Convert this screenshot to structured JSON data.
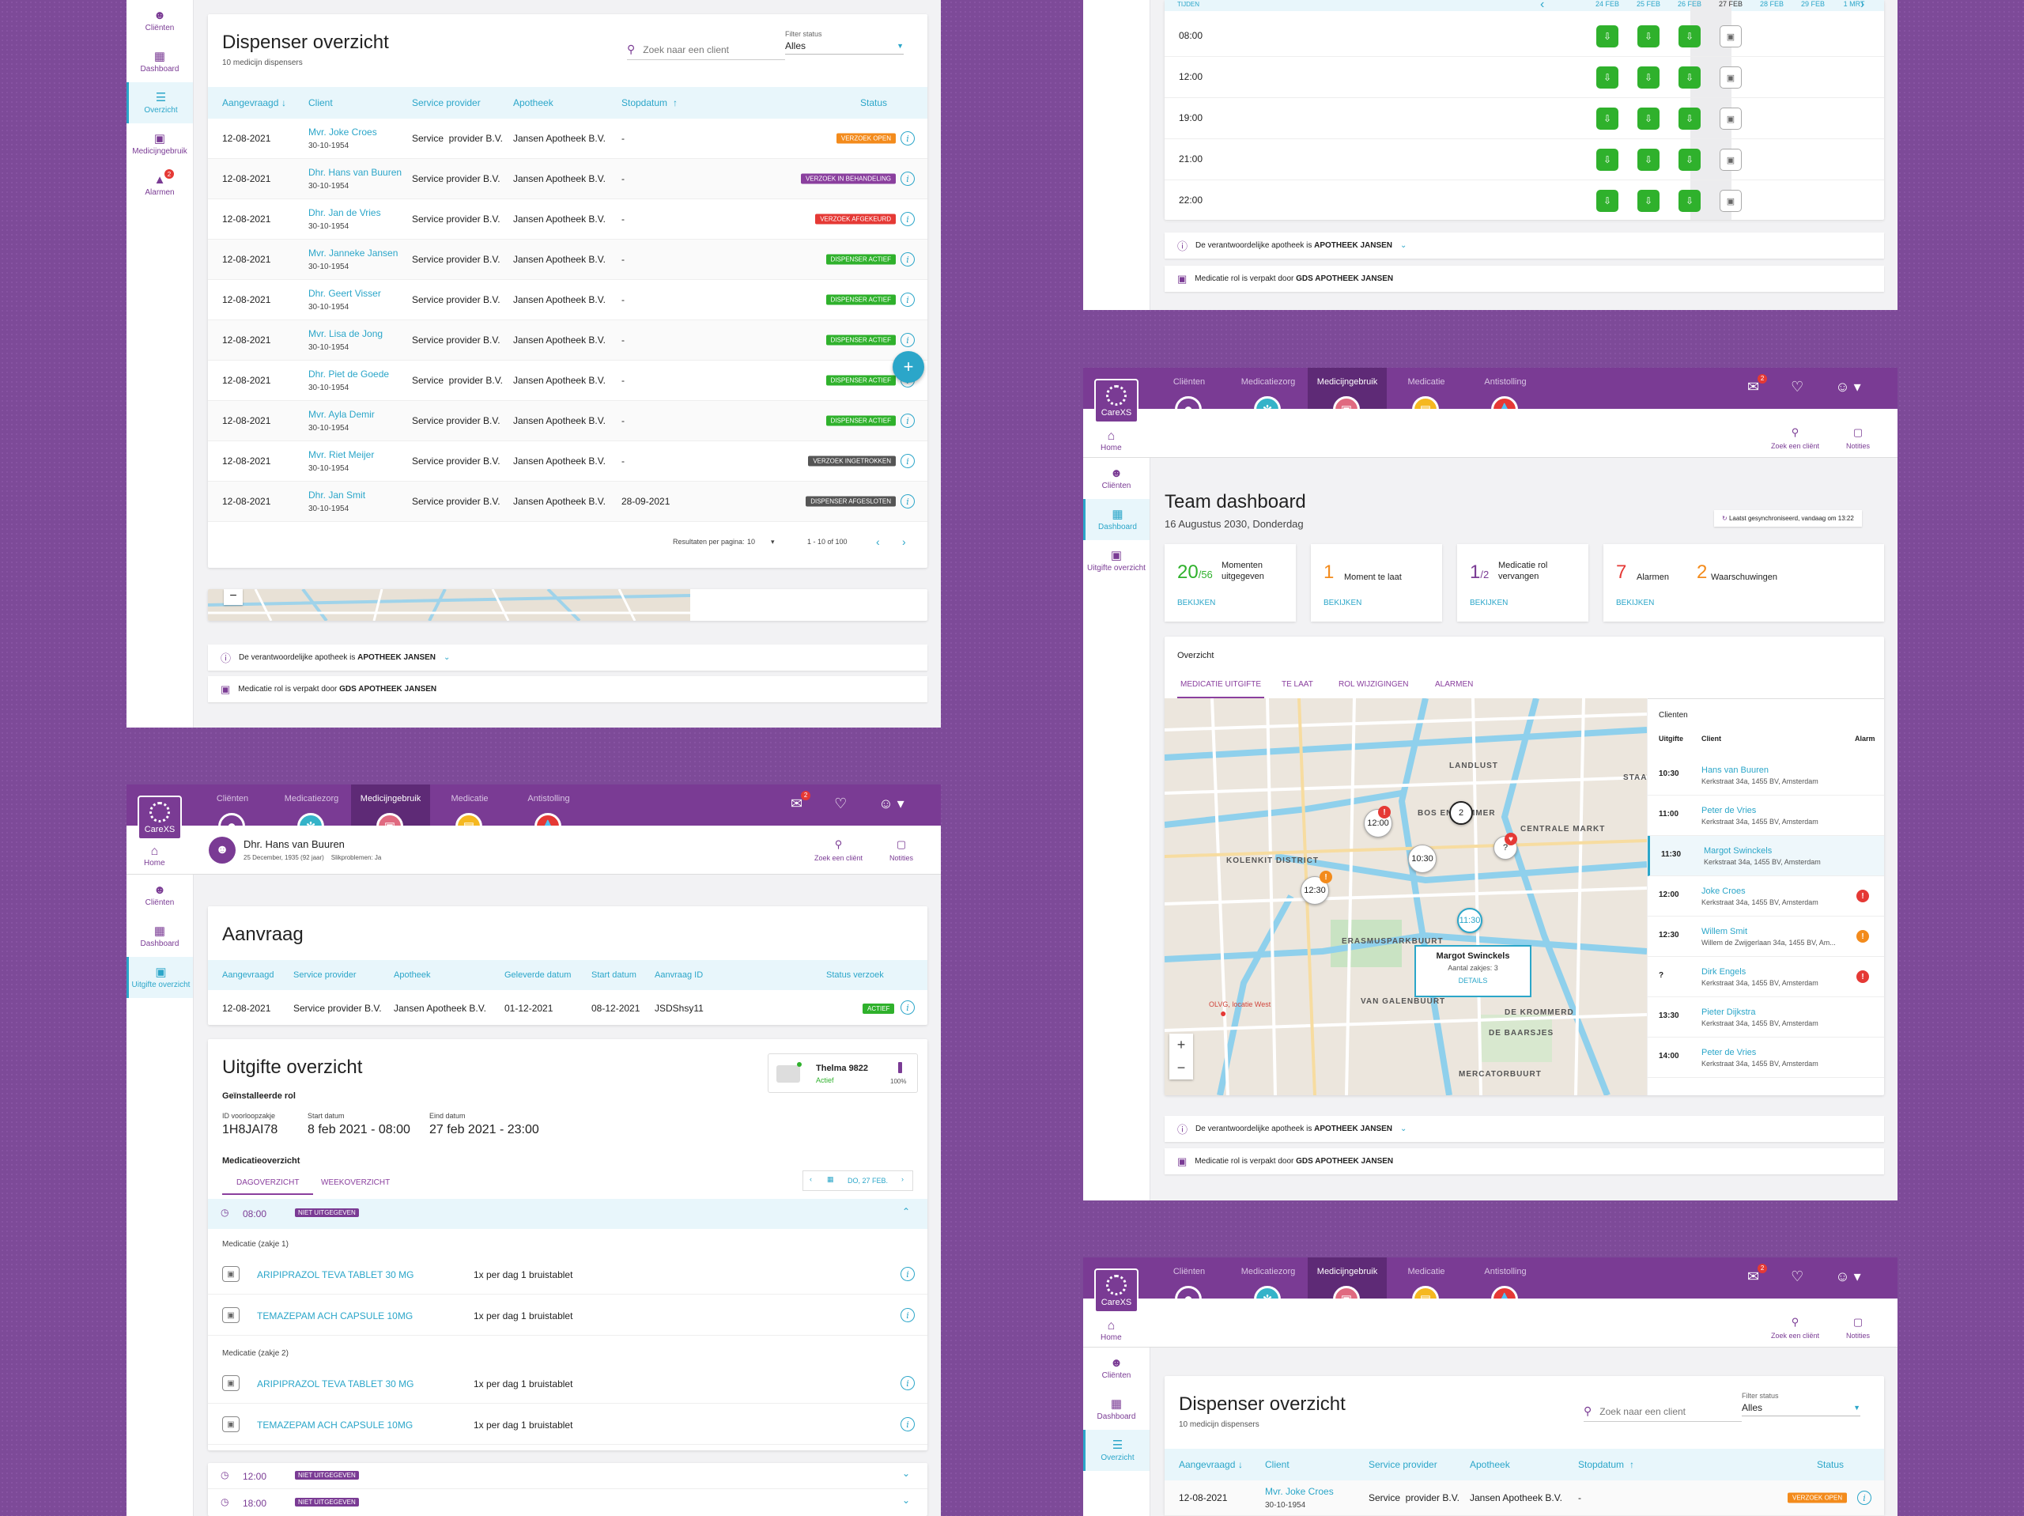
{
  "brand": {
    "primary": "#7a3b94",
    "accent": "#2ba6c9",
    "logo_text": "CareXS"
  },
  "sidebar": {
    "items": [
      {
        "label": "Cliënten",
        "icon": "person-icon"
      },
      {
        "label": "Dashboard",
        "icon": "grid-icon"
      },
      {
        "label": "Overzicht",
        "icon": "list-icon"
      },
      {
        "label": "Medicijngebruik",
        "icon": "dispenser-icon"
      },
      {
        "label": "Alarmen",
        "icon": "warning-icon",
        "badge": "2"
      }
    ],
    "items3": [
      {
        "label": "Cliënten"
      },
      {
        "label": "Dashboard"
      },
      {
        "label": "Uitgifte overzicht"
      }
    ],
    "items4": [
      {
        "label": "Cliënten"
      },
      {
        "label": "Dashboard"
      },
      {
        "label": "Uitgifte overzicht"
      }
    ],
    "items5": [
      {
        "label": "Cliënten"
      },
      {
        "label": "Dashboard"
      },
      {
        "label": "Overzicht"
      }
    ]
  },
  "nav": {
    "items": [
      "Cliënten",
      "Medicatiezorg",
      "Medicijngebruik",
      "Medicatie",
      "Antistolling"
    ],
    "home": "Home",
    "search": "Zoek een cliënt",
    "notes": "Notities",
    "inbox_badge": "2"
  },
  "dispenser": {
    "title": "Dispenser overzicht",
    "subtitle": "10 medicijn dispensers",
    "search_placeholder": "Zoek naar een client",
    "filter_label": "Filter status",
    "filter_value": "Alles",
    "headers": [
      "Aangevraagd",
      "Client",
      "Service provider",
      "Apotheek",
      "Stopdatum",
      "Status"
    ],
    "rows": [
      {
        "date": "12-08-2021",
        "name": "Mvr. Joke Croes",
        "dob": "30-10-1954",
        "provider": "Service  provider B.V.",
        "pharmacy": "Jansen Apotheek B.V.",
        "stop": "-",
        "status": "Verzoek open",
        "color": "orange"
      },
      {
        "date": "12-08-2021",
        "name": "Dhr. Hans van Buuren",
        "dob": "30-10-1954",
        "provider": "Service provider B.V.",
        "pharmacy": "Jansen Apotheek B.V.",
        "stop": "-",
        "status": "Verzoek in behandeling",
        "color": "purple"
      },
      {
        "date": "12-08-2021",
        "name": "Dhr. Jan de Vries",
        "dob": "30-10-1954",
        "provider": "Service provider B.V.",
        "pharmacy": "Jansen Apotheek B.V.",
        "stop": "-",
        "status": "Verzoek afgekeurd",
        "color": "red"
      },
      {
        "date": "12-08-2021",
        "name": "Mvr. Janneke Jansen",
        "dob": "30-10-1954",
        "provider": "Service provider B.V.",
        "pharmacy": "Jansen Apotheek B.V.",
        "stop": "-",
        "status": "Dispenser actief",
        "color": "green"
      },
      {
        "date": "12-08-2021",
        "name": "Dhr. Geert Visser",
        "dob": "30-10-1954",
        "provider": "Service provider B.V.",
        "pharmacy": "Jansen Apotheek B.V.",
        "stop": "-",
        "status": "Dispenser actief",
        "color": "green"
      },
      {
        "date": "12-08-2021",
        "name": "Mvr. Lisa de Jong",
        "dob": "30-10-1954",
        "provider": "Service provider B.V.",
        "pharmacy": "Jansen Apotheek B.V.",
        "stop": "-",
        "status": "Dispenser actief",
        "color": "green"
      },
      {
        "date": "12-08-2021",
        "name": "Dhr. Piet de Goede",
        "dob": "30-10-1954",
        "provider": "Service  provider B.V.",
        "pharmacy": "Jansen Apotheek B.V.",
        "stop": "-",
        "status": "Dispenser actief",
        "color": "green"
      },
      {
        "date": "12-08-2021",
        "name": "Mvr. Ayla Demir",
        "dob": "30-10-1954",
        "provider": "Service provider B.V.",
        "pharmacy": "Jansen Apotheek B.V.",
        "stop": "-",
        "status": "Dispenser actief",
        "color": "green"
      },
      {
        "date": "12-08-2021",
        "name": "Mvr. Riet Meijer",
        "dob": "30-10-1954",
        "provider": "Service provider B.V.",
        "pharmacy": "Jansen Apotheek B.V.",
        "stop": "-",
        "status": "Verzoek ingetrokken",
        "color": "grey"
      },
      {
        "date": "12-08-2021",
        "name": "Dhr. Jan Smit",
        "dob": "30-10-1954",
        "provider": "Service provider B.V.",
        "pharmacy": "Jansen Apotheek B.V.",
        "stop": "28-09-2021",
        "status": "Dispenser afgesloten",
        "color": "grey"
      }
    ],
    "per_page_label": "Resultaten per pagina:",
    "per_page": "10",
    "range": "1 - 10 of 100",
    "bottom_row": {
      "date": "12-08-2021",
      "name": "Mvr. Joke Croes",
      "dob": "30-10-1954",
      "provider": "Service  provider B.V.",
      "pharmacy": "Jansen Apotheek B.V.",
      "stop": "-",
      "status": "Verzoek open"
    }
  },
  "strips": {
    "pharmacy_text": "De verantwoordelijke apotheek is",
    "pharmacy_name": "APOTHEEK JANSEN",
    "roll_text": "Medicatie rol is verpakt door",
    "roll_name": "GDS APOTHEEK JANSEN"
  },
  "schedule": {
    "header": "TIJDEN",
    "dates": [
      "24 FEB",
      "25 FEB",
      "26 FEB",
      "27 FEB",
      "28 FEB",
      "29 FEB",
      "1 MRT"
    ],
    "times": [
      "08:00",
      "12:00",
      "19:00",
      "21:00",
      "22:00"
    ]
  },
  "patient": {
    "name": "Dhr. Hans van Buuren",
    "meta": "25 December, 1935 (92 jaar)    Slikproblemen: Ja"
  },
  "aanvraag": {
    "title": "Aanvraag",
    "headers": [
      "Aangevraagd",
      "Service provider",
      "Apotheek",
      "Geleverde datum",
      "Start datum",
      "Aanvraag ID",
      "Status verzoek"
    ],
    "row": [
      "12-08-2021",
      "Service provider B.V.",
      "Jansen  Apotheek B.V.",
      "01-12-2021",
      "08-12-2021",
      "JSDShsy11",
      "ACTIEF"
    ]
  },
  "uitgifte": {
    "title": "Uitgifte overzicht",
    "device_name": "Thelma 9822",
    "device_status": "Actief",
    "device_battery": "100%",
    "installed_label": "Geïnstalleerde rol",
    "id_label": "ID voorloopzakje",
    "id_value": "1H8JAI78",
    "start_label": "Start datum",
    "start_value": "8 feb 2021 - 08:00",
    "end_label": "Eind datum",
    "end_value": "27 feb 2021 - 23:00",
    "med_overview": "Medicatieoverzicht",
    "tab_day": "DAGOVERZICHT",
    "tab_week": "WEEKOVERZICHT",
    "date_nav": "DO, 27 FEB.",
    "slot1_time": "08:00",
    "slot_status": "NIET UITGEGEVEN",
    "group1": "Medicatie (zakje 1)",
    "group2": "Medicatie (zakje 2)",
    "meds": [
      {
        "name": "ARIPIPRAZOL TEVA TABLET 30 MG",
        "dose": "1x per dag 1 bruistablet"
      },
      {
        "name": "TEMAZEPAM ACH CAPSULE 10MG",
        "dose": "1x per dag 1 bruistablet"
      },
      {
        "name": "ARIPIPRAZOL TEVA TABLET 30 MG",
        "dose": "1x per dag 1 bruistablet"
      },
      {
        "name": "TEMAZEPAM ACH CAPSULE 10MG",
        "dose": "1x per dag 1 bruistablet"
      }
    ],
    "slot2_time": "12:00",
    "slot3_time": "18:00"
  },
  "team": {
    "title": "Team dashboard",
    "date": "16 Augustus 2030, Donderdag",
    "sync": "Laatst gesynchroniseerd, vandaag om 13:22",
    "kpis": [
      {
        "num": "20",
        "den": "/56",
        "label": "Momenten uitgegeven",
        "link": "BEKIJKEN",
        "color": "#2fb12c"
      },
      {
        "num": "1",
        "den": "",
        "label": "Moment te laat",
        "link": "BEKIJKEN",
        "color": "#f38b1c"
      },
      {
        "num": "1",
        "den": "/2",
        "label": "Medicatie rol vervangen",
        "link": "BEKIJKEN",
        "color": "#7a3b94"
      },
      {
        "num": "7",
        "den": "",
        "label": "Alarmen",
        "link": "BEKIJKEN",
        "color": "#e53935",
        "num2": "2",
        "label2": "Waarschuwingen"
      }
    ],
    "overview": "Overzicht",
    "tabs": [
      "MEDICATIE UITGIFTE",
      "TE LAAT",
      "ROL WIJZIGINGEN",
      "ALARMEN"
    ],
    "map_labels": [
      "LANDLUST",
      "BOS EN LOMMER",
      "CENTRALE MARKT",
      "KOLENKIT DISTRICT",
      "ERASMUSPARKBUURT",
      "VAN GALENBUURT",
      "DE BAARSJES",
      "MERCATORBUURT",
      "STAAT",
      "DE KROMMERD",
      "OLVG, locatie West"
    ],
    "popup_name": "Margot Swinckels",
    "popup_meta": "Aantal zakjes: 3",
    "popup_link": "DETAILS",
    "markers": [
      "12:00",
      "10:30",
      "12:30",
      "11:30",
      "2",
      "?"
    ],
    "clients_title": "Clienten",
    "clients_headers": [
      "Uitgifte",
      "Client",
      "Alarm"
    ],
    "clients": [
      {
        "time": "10:30",
        "name": "Hans van Buuren",
        "addr": "Kerkstraat 34a, 1455 BV, Amsterdam",
        "alarm": ""
      },
      {
        "time": "11:00",
        "name": "Peter de Vries",
        "addr": "Kerkstraat 34a, 1455 BV, Amsterdam",
        "alarm": ""
      },
      {
        "time": "11:30",
        "name": "Margot Swinckels",
        "addr": "Kerkstraat 34a, 1455 BV, Amsterdam",
        "alarm": ""
      },
      {
        "time": "12:00",
        "name": "Joke Croes",
        "addr": "Kerkstraat 34a, 1455 BV, Amsterdam",
        "alarm": "red"
      },
      {
        "time": "12:30",
        "name": "Willem Smit",
        "addr": "Willem de Zwijgerlaan 34a, 1455 BV, Am...",
        "alarm": "orange"
      },
      {
        "time": "?",
        "name": "Dirk Engels",
        "addr": "Kerkstraat 34a, 1455 BV, Amsterdam",
        "alarm": "red"
      },
      {
        "time": "13:30",
        "name": "Pieter Dijkstra",
        "addr": "Kerkstraat 34a, 1455 BV, Amsterdam",
        "alarm": ""
      },
      {
        "time": "14:00",
        "name": "Peter de Vries",
        "addr": "Kerkstraat 34a, 1455 BV, Amsterdam",
        "alarm": ""
      }
    ]
  }
}
